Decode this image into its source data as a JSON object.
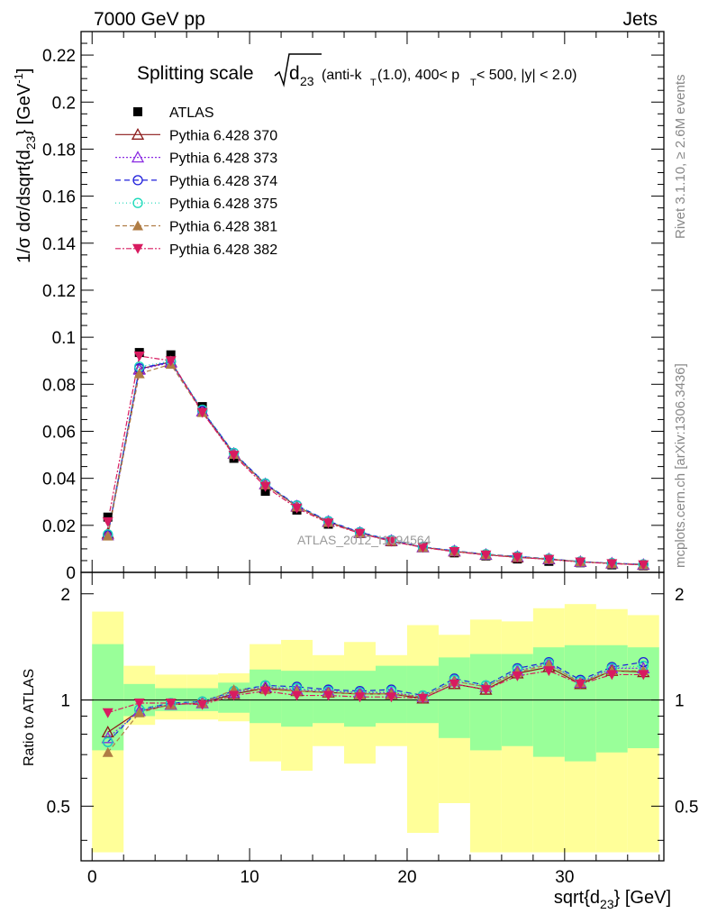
{
  "header": {
    "left": "7000 GeV pp",
    "right": "Jets",
    "title_main": "Splitting scale",
    "title_sym": "d",
    "title_sub": "23",
    "title_rest_1": "(anti-k",
    "title_rest_T": "T",
    "title_rest_2": "(1.0), 400< p",
    "title_rest_3": " < 500, |y| < 2.0)"
  },
  "side": {
    "rivet": "Rivet 3.1.10, ≥ 2.6M events",
    "mcplots": "mcplots.cern.ch [arXiv:1306.3436]"
  },
  "watermark": "ATLAS_2012_I1094564",
  "colors": {
    "atlas": "#000000",
    "s370": "#8b1a1a",
    "s373": "#8a2be2",
    "s374": "#1f1fdb",
    "s375": "#19d9b9",
    "s381": "#b07d45",
    "s382": "#d81b60",
    "band_inner": "#99ff99",
    "band_outer": "#ffff99"
  },
  "chart_data": [
    {
      "type": "line",
      "panel": "main",
      "ylabel_pre": "1/σ dσ/dsqrt{d",
      "ylabel_sub": "23",
      "ylabel_post": "} [GeV",
      "ylabel_sup": "-1",
      "ylabel_end": "]",
      "xlim": [
        -0.7,
        36.3
      ],
      "ylim": [
        0,
        0.23
      ],
      "yticks": [
        "0",
        "0.02",
        "0.04",
        "0.06",
        "0.08",
        "0.1",
        "0.12",
        "0.14",
        "0.16",
        "0.18",
        "0.2",
        "0.22"
      ],
      "legend_position": "top-left",
      "x": [
        1,
        3,
        5,
        7,
        9,
        11,
        13,
        15,
        17,
        19,
        21,
        23,
        25,
        27,
        29,
        31,
        33,
        35
      ],
      "series": [
        {
          "name": "ATLAS",
          "key": "atlas",
          "marker": "square",
          "dash": "",
          "values": [
            0.0235,
            0.0935,
            0.0925,
            0.0705,
            0.0485,
            0.0345,
            0.0265,
            0.0205,
            0.0165,
            0.013,
            0.0107,
            0.0083,
            0.007,
            0.0057,
            0.0047,
            0.0041,
            0.0032,
            0.0028
          ]
        },
        {
          "name": "Pythia 6.428 370",
          "key": "s370",
          "marker": "triangle-open",
          "dash": "",
          "values": [
            0.0165,
            0.0865,
            0.0895,
            0.0685,
            0.0505,
            0.0375,
            0.028,
            0.0215,
            0.0168,
            0.0133,
            0.0107,
            0.0089,
            0.0075,
            0.0064,
            0.0056,
            0.0045,
            0.0038,
            0.0032
          ]
        },
        {
          "name": "Pythia 6.428 373",
          "key": "s373",
          "marker": "triangle-open",
          "dash": "2,2",
          "values": [
            0.0158,
            0.0862,
            0.0892,
            0.0685,
            0.0505,
            0.0376,
            0.0282,
            0.0216,
            0.0169,
            0.0135,
            0.0108,
            0.0091,
            0.0076,
            0.0067,
            0.0057,
            0.0045,
            0.0039,
            0.0033
          ]
        },
        {
          "name": "Pythia 6.428 374",
          "key": "s374",
          "marker": "circle-open",
          "dash": "6,4",
          "values": [
            0.0158,
            0.0868,
            0.0895,
            0.0688,
            0.0508,
            0.0378,
            0.0285,
            0.0218,
            0.0171,
            0.0137,
            0.0108,
            0.0092,
            0.0077,
            0.0068,
            0.0058,
            0.0046,
            0.0039,
            0.0034
          ]
        },
        {
          "name": "Pythia 6.428 375",
          "key": "s375",
          "marker": "circle-open",
          "dash": "1,3",
          "values": [
            0.0162,
            0.0875,
            0.0898,
            0.0692,
            0.0508,
            0.0378,
            0.0284,
            0.0217,
            0.017,
            0.0136,
            0.0108,
            0.0091,
            0.0077,
            0.0067,
            0.0058,
            0.0046,
            0.0039,
            0.0034
          ]
        },
        {
          "name": "Pythia 6.428 381",
          "key": "s381",
          "marker": "triangle-filled",
          "dash": "5,3",
          "values": [
            0.0155,
            0.0845,
            0.0885,
            0.068,
            0.0502,
            0.0373,
            0.028,
            0.0213,
            0.0167,
            0.0133,
            0.0107,
            0.009,
            0.0076,
            0.0066,
            0.0057,
            0.0045,
            0.0038,
            0.0033
          ]
        },
        {
          "name": "Pythia 6.428 382",
          "key": "s382",
          "marker": "triangle-down-filled",
          "dash": "6,2,2,2",
          "values": [
            0.0215,
            0.092,
            0.09,
            0.068,
            0.0498,
            0.0365,
            0.0273,
            0.021,
            0.0166,
            0.0132,
            0.0106,
            0.0088,
            0.0074,
            0.0064,
            0.0055,
            0.0044,
            0.0037,
            0.0032
          ]
        }
      ]
    },
    {
      "type": "line",
      "panel": "ratio",
      "ylabel": "Ratio to ATLAS",
      "xlabel_pre": "sqrt{d",
      "xlabel_sub": "23",
      "xlabel_post": "} [GeV]",
      "xlim": [
        -0.7,
        36.3
      ],
      "ylim": [
        0.35,
        2.3
      ],
      "xticks": [
        "0",
        "10",
        "20",
        "30"
      ],
      "yticks": [
        "0.5",
        "1",
        "2"
      ],
      "reference_line": 1,
      "bins": [
        [
          0,
          2
        ],
        [
          2,
          4
        ],
        [
          4,
          6
        ],
        [
          6,
          8
        ],
        [
          8,
          10
        ],
        [
          10,
          12
        ],
        [
          12,
          14
        ],
        [
          14,
          16
        ],
        [
          16,
          18
        ],
        [
          18,
          20
        ],
        [
          20,
          22
        ],
        [
          22,
          24
        ],
        [
          24,
          26
        ],
        [
          26,
          28
        ],
        [
          28,
          30
        ],
        [
          30,
          32
        ],
        [
          32,
          34
        ],
        [
          34,
          36
        ]
      ],
      "band_inner": [
        [
          0.72,
          1.44
        ],
        [
          0.9,
          1.11
        ],
        [
          0.93,
          1.08
        ],
        [
          0.93,
          1.08
        ],
        [
          0.92,
          1.12
        ],
        [
          0.86,
          1.22
        ],
        [
          0.84,
          1.21
        ],
        [
          0.86,
          1.21
        ],
        [
          0.84,
          1.21
        ],
        [
          0.86,
          1.25
        ],
        [
          0.86,
          1.25
        ],
        [
          0.78,
          1.32
        ],
        [
          0.72,
          1.35
        ],
        [
          0.74,
          1.35
        ],
        [
          0.69,
          1.41
        ],
        [
          0.67,
          1.43
        ],
        [
          0.71,
          1.43
        ],
        [
          0.73,
          1.41
        ]
      ],
      "band_outer": [
        [
          0.37,
          1.78
        ],
        [
          0.85,
          1.25
        ],
        [
          0.88,
          1.18
        ],
        [
          0.88,
          1.18
        ],
        [
          0.87,
          1.19
        ],
        [
          0.67,
          1.44
        ],
        [
          0.63,
          1.48
        ],
        [
          0.74,
          1.34
        ],
        [
          0.66,
          1.46
        ],
        [
          0.74,
          1.34
        ],
        [
          0.42,
          1.63
        ],
        [
          0.51,
          1.53
        ],
        [
          0.37,
          1.69
        ],
        [
          0.37,
          1.67
        ],
        [
          0.37,
          1.82
        ],
        [
          0.37,
          1.87
        ],
        [
          0.37,
          1.81
        ],
        [
          0.37,
          1.74
        ]
      ],
      "series": [
        {
          "name": "Pythia 6.428 370",
          "key": "s370",
          "marker": "triangle-open",
          "dash": "",
          "values": [
            0.81,
            0.93,
            0.97,
            0.98,
            1.04,
            1.08,
            1.06,
            1.05,
            1.04,
            1.04,
            1.01,
            1.11,
            1.07,
            1.19,
            1.24,
            1.11,
            1.21,
            1.2
          ]
        },
        {
          "name": "Pythia 6.428 373",
          "key": "s373",
          "marker": "triangle-open",
          "dash": "2,2",
          "values": [
            0.78,
            0.93,
            0.97,
            0.98,
            1.05,
            1.09,
            1.07,
            1.06,
            1.05,
            1.05,
            1.02,
            1.13,
            1.09,
            1.21,
            1.27,
            1.12,
            1.23,
            1.23
          ]
        },
        {
          "name": "Pythia 6.428 374",
          "key": "s374",
          "marker": "circle-open",
          "dash": "6,4",
          "values": [
            0.76,
            0.94,
            0.98,
            0.99,
            1.06,
            1.1,
            1.09,
            1.07,
            1.06,
            1.07,
            1.03,
            1.15,
            1.1,
            1.23,
            1.28,
            1.14,
            1.24,
            1.28
          ]
        },
        {
          "name": "Pythia 6.428 375",
          "key": "s375",
          "marker": "circle-open",
          "dash": "1,3",
          "values": [
            0.76,
            0.94,
            0.98,
            0.99,
            1.06,
            1.1,
            1.08,
            1.06,
            1.05,
            1.06,
            1.03,
            1.14,
            1.1,
            1.22,
            1.27,
            1.13,
            1.23,
            1.25
          ]
        },
        {
          "name": "Pythia 6.428 381",
          "key": "s381",
          "marker": "triangle-filled",
          "dash": "5,3",
          "values": [
            0.71,
            0.92,
            0.97,
            0.98,
            1.07,
            1.07,
            1.06,
            1.05,
            1.04,
            1.04,
            1.02,
            1.13,
            1.09,
            1.2,
            1.26,
            1.12,
            1.21,
            1.21
          ]
        },
        {
          "name": "Pythia 6.428 382",
          "key": "s382",
          "marker": "triangle-down-filled",
          "dash": "6,2,2,2",
          "values": [
            0.92,
            0.98,
            0.98,
            0.97,
            1.03,
            1.06,
            1.03,
            1.03,
            1.02,
            1.02,
            1.01,
            1.11,
            1.07,
            1.17,
            1.21,
            1.11,
            1.18,
            1.18
          ]
        }
      ]
    }
  ]
}
